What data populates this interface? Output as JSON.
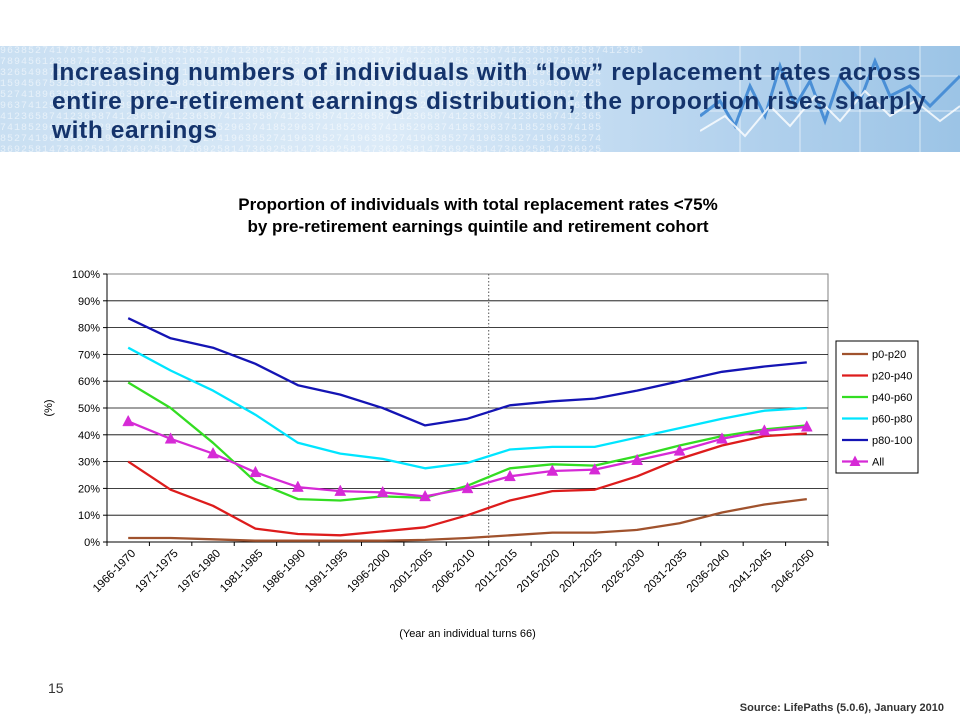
{
  "slide": {
    "title": "Increasing numbers of individuals with “low” replacement rates across entire pre-retirement earnings distribution;  the proportion rises sharply with earnings",
    "page_number": "15",
    "source": "Source:  LifePaths  (5.0.6), January 2010"
  },
  "colors": {
    "banner_text": "#14336b",
    "p0-p20": "#a0522d",
    "p20-p40": "#dd1c1c",
    "p40-p60": "#33dd22",
    "p60-p80": "#00e5ff",
    "p80-100": "#1414b4",
    "All": "#d62ad6"
  },
  "chart_data": {
    "type": "line",
    "title": "Proportion of individuals with total replacement rates <75%",
    "subtitle": "by pre-retirement earnings quintile and retirement cohort",
    "xlabel": "(Year an individual turns 66)",
    "ylabel": "(%)",
    "ylim": [
      0,
      100
    ],
    "yticks": [
      "0%",
      "10%",
      "20%",
      "30%",
      "40%",
      "50%",
      "60%",
      "70%",
      "80%",
      "90%",
      "100%"
    ],
    "grid": true,
    "legend_position": "right",
    "projection_divider_after": "2006-2010",
    "categories": [
      "1966-1970",
      "1971-1975",
      "1976-1980",
      "1981-1985",
      "1986-1990",
      "1991-1995",
      "1996-2000",
      "2001-2005",
      "2006-2010",
      "2011-2015",
      "2016-2020",
      "2021-2025",
      "2026-2030",
      "2031-2035",
      "2036-2040",
      "2041-2045",
      "2046-2050"
    ],
    "series": [
      {
        "name": "p0-p20",
        "values": [
          1.5,
          1.5,
          1.0,
          0.5,
          0.5,
          0.5,
          0.5,
          0.8,
          1.5,
          2.5,
          3.5,
          3.5,
          4.5,
          7.0,
          11.0,
          14.0,
          16.0
        ]
      },
      {
        "name": "p20-p40",
        "values": [
          30,
          19.5,
          13.5,
          5,
          3,
          2.5,
          4,
          5.5,
          10,
          15.5,
          19,
          19.5,
          24.5,
          31,
          36,
          39.5,
          40.5
        ]
      },
      {
        "name": "p40-p60",
        "values": [
          59.5,
          50,
          37,
          22.5,
          16,
          15.5,
          17,
          16.5,
          21,
          27.5,
          29,
          28.5,
          32,
          36,
          39.5,
          42,
          43.5
        ]
      },
      {
        "name": "p60-p80",
        "values": [
          72.5,
          64,
          56.5,
          47.5,
          37,
          33,
          31,
          27.5,
          29.5,
          34.5,
          35.5,
          35.5,
          39,
          42.5,
          46,
          49,
          50
        ]
      },
      {
        "name": "p80-100",
        "values": [
          83.5,
          76,
          72.5,
          66.5,
          58.5,
          55,
          50,
          43.5,
          46,
          51,
          52.5,
          53.5,
          56.5,
          60,
          63.5,
          65.5,
          67
        ]
      },
      {
        "name": "All",
        "values": [
          45,
          38.5,
          33,
          26,
          20.5,
          19,
          18.5,
          17,
          20,
          24.5,
          26.5,
          27,
          30.5,
          34,
          38.5,
          41.5,
          43
        ]
      }
    ]
  }
}
